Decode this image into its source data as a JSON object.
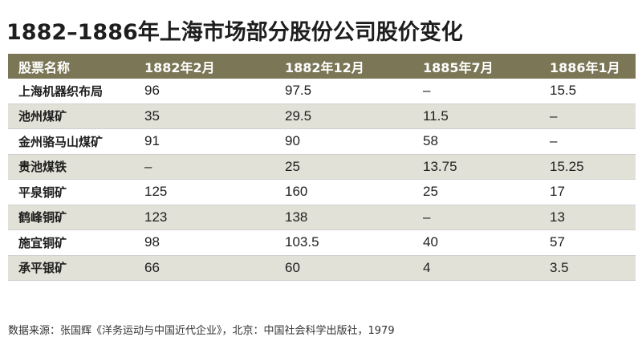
{
  "title": "1882–1886年上海市场部分股份公司股价变化",
  "source": "数据来源：张国辉《洋务运动与中国近代企业》，北京：中国社会科学出版社，1979",
  "chart_data": {
    "type": "table",
    "title": "1882–1886年上海市场部分股份公司股价变化",
    "columns": [
      "股票名称",
      "1882年2月",
      "1882年12月",
      "1885年7月",
      "1886年1月"
    ],
    "rows": [
      [
        "上海机器织布局",
        "96",
        "97.5",
        "–",
        "15.5"
      ],
      [
        "池州煤矿",
        "35",
        "29.5",
        "11.5",
        "–"
      ],
      [
        "金州骆马山煤矿",
        "91",
        "90",
        "58",
        "–"
      ],
      [
        "贵池煤铁",
        "–",
        "25",
        "13.75",
        "15.25"
      ],
      [
        "平泉铜矿",
        "125",
        "160",
        "25",
        "17"
      ],
      [
        "鹤峰铜矿",
        "123",
        "138",
        "–",
        "13"
      ],
      [
        "施宜铜矿",
        "98",
        "103.5",
        "40",
        "57"
      ],
      [
        "承平银矿",
        "66",
        "60",
        "4",
        "3.5"
      ]
    ]
  }
}
